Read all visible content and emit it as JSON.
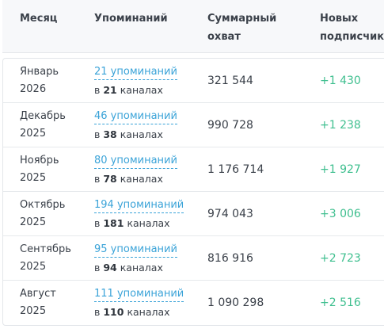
{
  "table": {
    "headers": {
      "month": "Месяц",
      "mentions": "Упоминаний",
      "reach": "Суммарный охват",
      "subscribers": "Новых подписчиков"
    },
    "channels_prefix": "в",
    "channels_suffix": "каналах",
    "rows": [
      {
        "month": "Январь",
        "year": "2026",
        "mentions": "21 упоминаний",
        "channels": "21",
        "reach": "321 544",
        "subscribers": "+1 430"
      },
      {
        "month": "Декабрь",
        "year": "2025",
        "mentions": "46 упоминаний",
        "channels": "38",
        "reach": "990 728",
        "subscribers": "+1 238"
      },
      {
        "month": "Ноябрь",
        "year": "2025",
        "mentions": "80 упоминаний",
        "channels": "78",
        "reach": "1 176 714",
        "subscribers": "+1 927"
      },
      {
        "month": "Октябрь",
        "year": "2025",
        "mentions": "194 упоминаний",
        "channels": "181",
        "reach": "974 043",
        "subscribers": "+3 006"
      },
      {
        "month": "Сентябрь",
        "year": "2025",
        "mentions": "95 упоминаний",
        "channels": "94",
        "reach": "816 916",
        "subscribers": "+2 723"
      },
      {
        "month": "Август",
        "year": "2025",
        "mentions": "111 упоминаний",
        "channels": "110",
        "reach": "1 090 298",
        "subscribers": "+2 516"
      }
    ]
  },
  "colors": {
    "link": "#3aa3d8",
    "positive": "#3fbf8f",
    "header_bg": "#f7f8fa"
  }
}
